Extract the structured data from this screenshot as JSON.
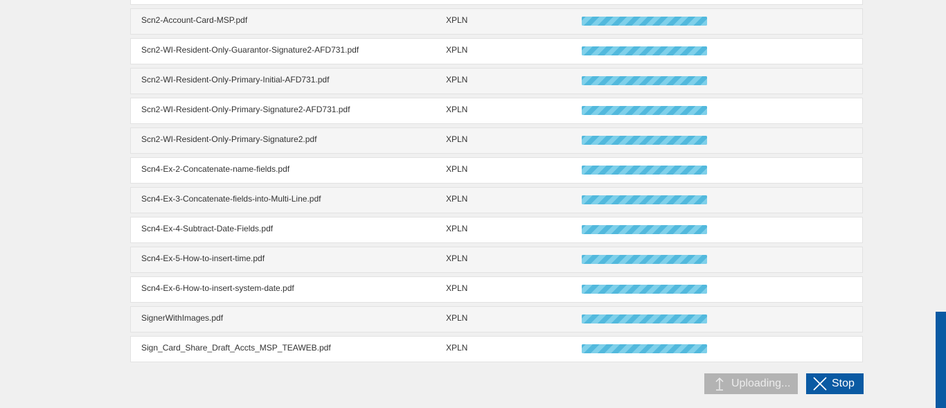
{
  "files": [
    {
      "name": "",
      "type": "",
      "show_progress": false
    },
    {
      "name": "Scn2-Account-Card-MSP.pdf",
      "type": "XPLN",
      "show_progress": true
    },
    {
      "name": "Scn2-WI-Resident-Only-Guarantor-Signature2-AFD731.pdf",
      "type": "XPLN",
      "show_progress": true
    },
    {
      "name": "Scn2-WI-Resident-Only-Primary-Initial-AFD731.pdf",
      "type": "XPLN",
      "show_progress": true
    },
    {
      "name": "Scn2-WI-Resident-Only-Primary-Signature2-AFD731.pdf",
      "type": "XPLN",
      "show_progress": true
    },
    {
      "name": "Scn2-WI-Resident-Only-Primary-Signature2.pdf",
      "type": "XPLN",
      "show_progress": true
    },
    {
      "name": "Scn4-Ex-2-Concatenate-name-fields.pdf",
      "type": "XPLN",
      "show_progress": true
    },
    {
      "name": "Scn4-Ex-3-Concatenate-fields-into-Multi-Line.pdf",
      "type": "XPLN",
      "show_progress": true
    },
    {
      "name": "Scn4-Ex-4-Subtract-Date-Fields.pdf",
      "type": "XPLN",
      "show_progress": true
    },
    {
      "name": "Scn4-Ex-5-How-to-insert-time.pdf",
      "type": "XPLN",
      "show_progress": true
    },
    {
      "name": "Scn4-Ex-6-How-to-insert-system-date.pdf",
      "type": "XPLN",
      "show_progress": true
    },
    {
      "name": "SignerWithImages.pdf",
      "type": "XPLN",
      "show_progress": true
    },
    {
      "name": "Sign_Card_Share_Draft_Accts_MSP_TEAWEB.pdf",
      "type": "XPLN",
      "show_progress": true
    }
  ],
  "actions": {
    "upload_label": "Uploading...",
    "upload_icon": "upload-arrow-icon",
    "stop_label": "Stop",
    "stop_icon": "close-x-icon"
  },
  "colors": {
    "progress": "#58bde0",
    "stop_button": "#0a5aa3",
    "upload_button_disabled": "#b3b3b3",
    "side_bar": "#0a5aa3"
  }
}
